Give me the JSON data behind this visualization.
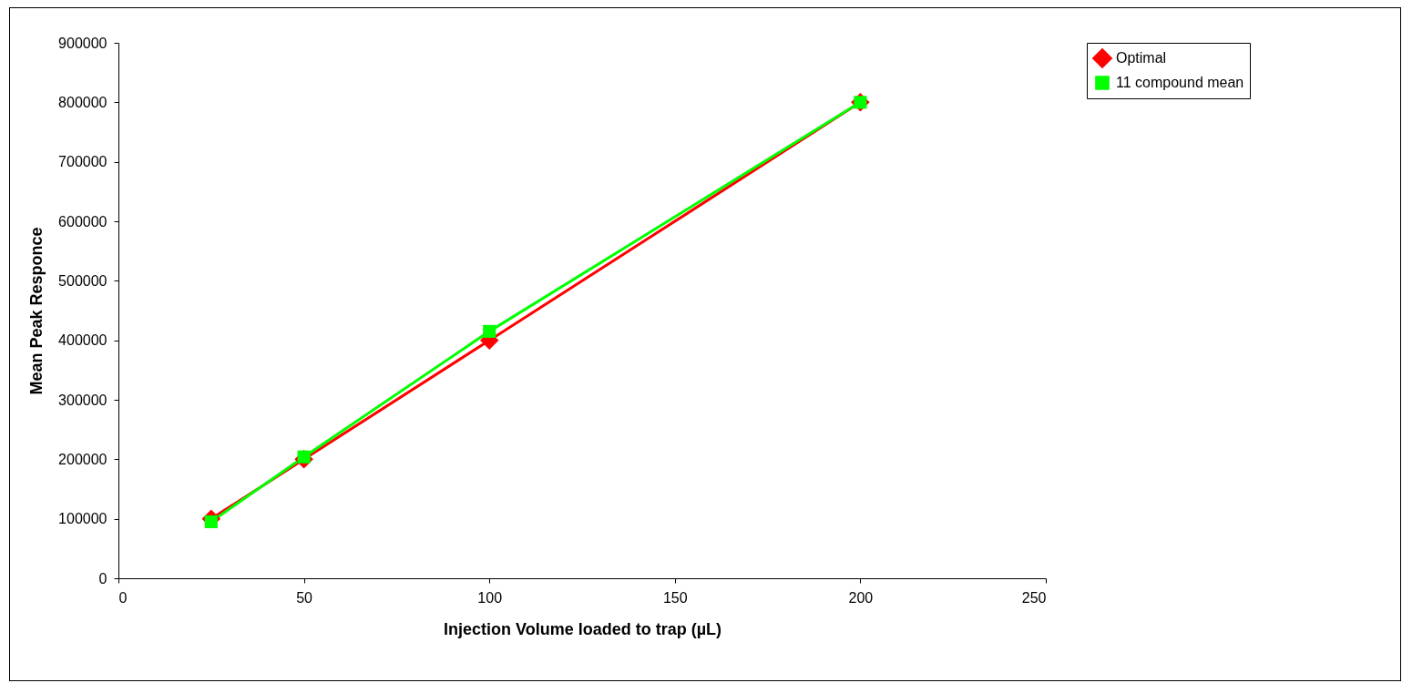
{
  "chart_data": {
    "type": "line",
    "xlabel": "Injection Volume loaded to trap (µL)",
    "ylabel": "Mean Peak Responce",
    "x": [
      25,
      50,
      100,
      200
    ],
    "series": [
      {
        "name": "Optimal",
        "color": "#ff0000",
        "marker": "diamond",
        "values": [
          100000,
          200000,
          400000,
          800000
        ]
      },
      {
        "name": "11 compound mean",
        "color": "#00ff00",
        "marker": "square",
        "values": [
          95000,
          204000,
          415000,
          800000
        ]
      }
    ],
    "xlim": [
      0,
      250
    ],
    "xticks": [
      0,
      50,
      100,
      150,
      200,
      250
    ],
    "ylim": [
      0,
      900000
    ],
    "yticks": [
      0,
      100000,
      200000,
      300000,
      400000,
      500000,
      600000,
      700000,
      800000,
      900000
    ],
    "grid": false,
    "legend": "right"
  }
}
